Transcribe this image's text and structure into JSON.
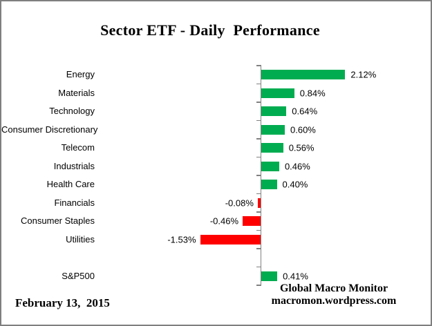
{
  "title": "Sector ETF - Daily  Performance",
  "date_label": "February 13,  2015",
  "attribution": {
    "line1": "Global Macro Monitor",
    "line2": "macromon.wordpress.com"
  },
  "colors": {
    "positive_bar": "#00AC50",
    "negative_bar": "#FF0000",
    "axis": "#808080",
    "border": "#7f7f7f",
    "text": "#000000"
  },
  "chart_data": {
    "type": "bar",
    "orientation": "horizontal",
    "title": "Sector ETF - Daily  Performance",
    "xlabel": "",
    "ylabel": "",
    "grid": false,
    "legend": false,
    "xlim": [
      -2.2,
      2.2
    ],
    "categories": [
      "Energy",
      "Materials",
      "Technology",
      "Consumer Discretionary",
      "Telecom",
      "Industrials",
      "Health Care",
      "Financials",
      "Consumer Staples",
      "Utilities",
      "",
      "S&P500"
    ],
    "values": [
      2.12,
      0.84,
      0.64,
      0.6,
      0.56,
      0.46,
      0.4,
      -0.08,
      -0.46,
      -1.53,
      null,
      0.41
    ],
    "value_labels": [
      "2.12%",
      "0.84%",
      "0.64%",
      "0.60%",
      "0.56%",
      "0.46%",
      "0.40%",
      "-0.08%",
      "-0.46%",
      "-1.53%",
      "",
      "0.41%"
    ]
  }
}
